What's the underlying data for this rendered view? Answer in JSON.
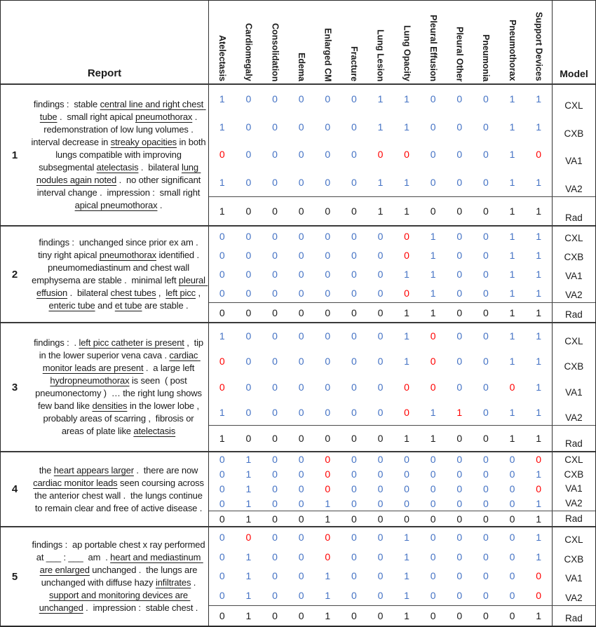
{
  "table": {
    "report_header": "Report",
    "model_header": "Model",
    "columns": [
      "Atelectasis",
      "Cardiomegaly",
      "Consolidation",
      "Edema",
      "Enlarged CM",
      "Fracture",
      "Lung Lesion",
      "Lung Opacity",
      "Pleural Effusion",
      "Pleural Other",
      "Pneumonia",
      "Pneumothorax",
      "Support Devices"
    ],
    "models": [
      "CXL",
      "CXB",
      "VA1",
      "VA2",
      "Rad"
    ],
    "colors": {
      "prediction": "#4472C4",
      "error": "#FF0000",
      "rad": "#1a1a1a"
    },
    "reports": [
      {
        "id": "1",
        "text_segments": [
          {
            "t": "findings :  stable ",
            "u": false
          },
          {
            "t": "central line and right chest tube",
            "u": true
          },
          {
            "t": " .  small right apical ",
            "u": false
          },
          {
            "t": "pneumothorax",
            "u": true
          },
          {
            "t": " .  redemonstration of low lung volumes .  interval decrease in ",
            "u": false
          },
          {
            "t": "streaky opacities",
            "u": true
          },
          {
            "t": " in both lungs compatible with improving subsegmental ",
            "u": false
          },
          {
            "t": "atelectasis",
            "u": true
          },
          {
            "t": " .  bilateral ",
            "u": false
          },
          {
            "t": "lung nodules again noted",
            "u": true
          },
          {
            "t": " .  no other significant interval change .  impression :  small right ",
            "u": false
          },
          {
            "t": "apical pneumothorax",
            "u": true
          },
          {
            "t": " .",
            "u": false
          }
        ],
        "rows": [
          {
            "model": "CXL",
            "values": [
              1,
              0,
              0,
              0,
              0,
              0,
              1,
              1,
              0,
              0,
              0,
              1,
              1
            ],
            "red": []
          },
          {
            "model": "CXB",
            "values": [
              1,
              0,
              0,
              0,
              0,
              0,
              1,
              1,
              0,
              0,
              0,
              1,
              1
            ],
            "red": []
          },
          {
            "model": "VA1",
            "values": [
              0,
              0,
              0,
              0,
              0,
              0,
              0,
              0,
              0,
              0,
              0,
              1,
              0
            ],
            "red": [
              0,
              6,
              7,
              12
            ]
          },
          {
            "model": "VA2",
            "values": [
              1,
              0,
              0,
              0,
              0,
              0,
              1,
              1,
              0,
              0,
              0,
              1,
              1
            ],
            "red": []
          },
          {
            "model": "Rad",
            "values": [
              1,
              0,
              0,
              0,
              0,
              0,
              1,
              1,
              0,
              0,
              0,
              1,
              1
            ],
            "red": []
          }
        ]
      },
      {
        "id": "2",
        "text_segments": [
          {
            "t": "findings :  unchanged since prior ex am .  tiny right apical ",
            "u": false
          },
          {
            "t": "pneumothorax",
            "u": true
          },
          {
            "t": " identified .  pneumomediastinum and chest wall emphysema are stable .  minimal left ",
            "u": false
          },
          {
            "t": "pleural effusion",
            "u": true
          },
          {
            "t": " .  bilateral ",
            "u": false
          },
          {
            "t": "chest tubes",
            "u": true
          },
          {
            "t": " ,  ",
            "u": false
          },
          {
            "t": "left picc",
            "u": true
          },
          {
            "t": " ,  ",
            "u": false
          },
          {
            "t": "enteric tube",
            "u": true
          },
          {
            "t": " and ",
            "u": false
          },
          {
            "t": "et tube",
            "u": true
          },
          {
            "t": " are stable .",
            "u": false
          }
        ],
        "rows": [
          {
            "model": "CXL",
            "values": [
              0,
              0,
              0,
              0,
              0,
              0,
              0,
              0,
              1,
              0,
              0,
              1,
              1
            ],
            "red": [
              7
            ]
          },
          {
            "model": "CXB",
            "values": [
              0,
              0,
              0,
              0,
              0,
              0,
              0,
              0,
              1,
              0,
              0,
              1,
              1
            ],
            "red": [
              7
            ]
          },
          {
            "model": "VA1",
            "values": [
              0,
              0,
              0,
              0,
              0,
              0,
              0,
              1,
              1,
              0,
              0,
              1,
              1
            ],
            "red": []
          },
          {
            "model": "VA2",
            "values": [
              0,
              0,
              0,
              0,
              0,
              0,
              0,
              0,
              1,
              0,
              0,
              1,
              1
            ],
            "red": [
              7
            ]
          },
          {
            "model": "Rad",
            "values": [
              0,
              0,
              0,
              0,
              0,
              0,
              0,
              1,
              1,
              0,
              0,
              1,
              1
            ],
            "red": []
          }
        ]
      },
      {
        "id": "3",
        "text_segments": [
          {
            "t": "findings :  . ",
            "u": false
          },
          {
            "t": "left picc catheter is present",
            "u": true
          },
          {
            "t": " ,  tip in the lower superior vena cava . ",
            "u": false
          },
          {
            "t": "cardiac monitor leads are present",
            "u": true
          },
          {
            "t": " .  a large left ",
            "u": false
          },
          {
            "t": "hydropneumothorax",
            "u": true
          },
          {
            "t": " is seen  ( post pneumonectomy )  … the right lung shows few band like ",
            "u": false
          },
          {
            "t": "densities",
            "u": true
          },
          {
            "t": " in the lower lobe ,  probably areas of scarring ,  fibrosis or areas of plate like ",
            "u": false
          },
          {
            "t": "atelectasis",
            "u": true
          }
        ],
        "rows": [
          {
            "model": "CXL",
            "values": [
              1,
              0,
              0,
              0,
              0,
              0,
              0,
              1,
              0,
              0,
              0,
              1,
              1
            ],
            "red": [
              8
            ]
          },
          {
            "model": "CXB",
            "values": [
              0,
              0,
              0,
              0,
              0,
              0,
              0,
              1,
              0,
              0,
              0,
              1,
              1
            ],
            "red": [
              0,
              8
            ]
          },
          {
            "model": "VA1",
            "values": [
              0,
              0,
              0,
              0,
              0,
              0,
              0,
              0,
              0,
              0,
              0,
              0,
              1
            ],
            "red": [
              0,
              7,
              8,
              11
            ]
          },
          {
            "model": "VA2",
            "values": [
              1,
              0,
              0,
              0,
              0,
              0,
              0,
              0,
              1,
              1,
              0,
              1,
              1
            ],
            "red": [
              7,
              9
            ]
          },
          {
            "model": "Rad",
            "values": [
              1,
              0,
              0,
              0,
              0,
              0,
              0,
              1,
              1,
              0,
              0,
              1,
              1
            ],
            "red": []
          }
        ]
      },
      {
        "id": "4",
        "text_segments": [
          {
            "t": "the ",
            "u": false
          },
          {
            "t": "heart appears larger",
            "u": true
          },
          {
            "t": " .  there are now ",
            "u": false
          },
          {
            "t": "cardiac monitor leads",
            "u": true
          },
          {
            "t": " seen coursing across the anterior chest wall .  the lungs continue to remain clear and free of active disease .",
            "u": false
          }
        ],
        "rows": [
          {
            "model": "CXL",
            "values": [
              0,
              1,
              0,
              0,
              0,
              0,
              0,
              0,
              0,
              0,
              0,
              0,
              0
            ],
            "red": [
              4,
              12
            ]
          },
          {
            "model": "CXB",
            "values": [
              0,
              1,
              0,
              0,
              0,
              0,
              0,
              0,
              0,
              0,
              0,
              0,
              1
            ],
            "red": [
              4
            ]
          },
          {
            "model": "VA1",
            "values": [
              0,
              1,
              0,
              0,
              0,
              0,
              0,
              0,
              0,
              0,
              0,
              0,
              0
            ],
            "red": [
              4,
              12
            ]
          },
          {
            "model": "VA2",
            "values": [
              0,
              1,
              0,
              0,
              1,
              0,
              0,
              0,
              0,
              0,
              0,
              0,
              1
            ],
            "red": []
          },
          {
            "model": "Rad",
            "values": [
              0,
              1,
              0,
              0,
              1,
              0,
              0,
              0,
              0,
              0,
              0,
              0,
              1
            ],
            "red": []
          }
        ]
      },
      {
        "id": "5",
        "text_segments": [
          {
            "t": "findings :  ap portable chest x ray performed at ___ : ___  am  . ",
            "u": false
          },
          {
            "t": "heart and mediastinum are enlarged",
            "u": true
          },
          {
            "t": " unchanged .  the lungs are unchanged with diffuse hazy ",
            "u": false
          },
          {
            "t": "infiltrates",
            "u": true
          },
          {
            "t": " .  ",
            "u": false
          },
          {
            "t": "support and monitoring devices are unchanged",
            "u": true
          },
          {
            "t": " .  impression :  stable chest .",
            "u": false
          }
        ],
        "rows": [
          {
            "model": "CXL",
            "values": [
              0,
              0,
              0,
              0,
              0,
              0,
              0,
              1,
              0,
              0,
              0,
              0,
              1
            ],
            "red": [
              1,
              4
            ]
          },
          {
            "model": "CXB",
            "values": [
              0,
              1,
              0,
              0,
              0,
              0,
              0,
              1,
              0,
              0,
              0,
              0,
              1
            ],
            "red": [
              4
            ]
          },
          {
            "model": "VA1",
            "values": [
              0,
              1,
              0,
              0,
              1,
              0,
              0,
              1,
              0,
              0,
              0,
              0,
              0
            ],
            "red": [
              12
            ]
          },
          {
            "model": "VA2",
            "values": [
              0,
              1,
              0,
              0,
              1,
              0,
              0,
              1,
              0,
              0,
              0,
              0,
              0
            ],
            "red": [
              12
            ]
          },
          {
            "model": "Rad",
            "values": [
              0,
              1,
              0,
              0,
              1,
              0,
              0,
              1,
              0,
              0,
              0,
              0,
              1
            ],
            "red": []
          }
        ]
      }
    ]
  }
}
